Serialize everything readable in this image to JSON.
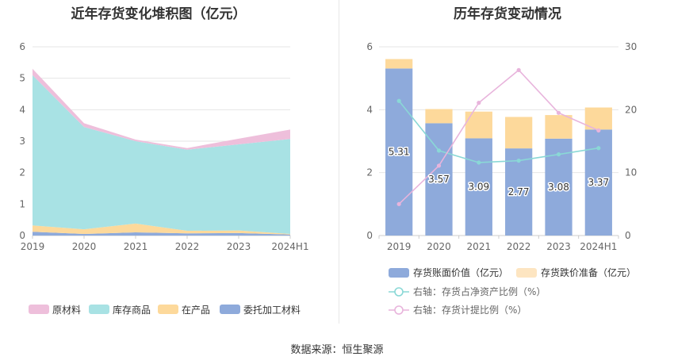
{
  "source_label": "数据来源：恒生聚源",
  "chart_data": [
    {
      "type": "area",
      "title": "近年存货变化堆积图（亿元）",
      "categories": [
        "2019",
        "2020",
        "2021",
        "2022",
        "2023",
        "2024H1"
      ],
      "ylim": [
        0,
        6
      ],
      "yticks": [
        "0",
        "1",
        "2",
        "3",
        "4",
        "5",
        "6"
      ],
      "grid": true,
      "legend_position": "bottom",
      "series": [
        {
          "name": "委托加工材料",
          "color": "#8eaadb",
          "values": [
            0.12,
            0.05,
            0.1,
            0.07,
            0.08,
            0.03
          ]
        },
        {
          "name": "在产品",
          "color": "#fdd99b",
          "values": [
            0.2,
            0.15,
            0.28,
            0.08,
            0.08,
            0.02
          ]
        },
        {
          "name": "库存商品",
          "color": "#a8e2e4",
          "values": [
            4.78,
            3.25,
            2.62,
            2.58,
            2.74,
            3.02
          ]
        },
        {
          "name": "原材料",
          "color": "#eebfdb",
          "values": [
            0.2,
            0.12,
            0.05,
            0.05,
            0.18,
            0.3
          ]
        }
      ],
      "legend_order": [
        "原材料",
        "库存商品",
        "在产品",
        "委托加工材料"
      ]
    },
    {
      "type": "bar",
      "title": "历年存货变动情况",
      "categories": [
        "2019",
        "2020",
        "2021",
        "2022",
        "2023",
        "2024H1"
      ],
      "ylim": [
        0,
        6
      ],
      "yticks": [
        "0",
        "2",
        "4",
        "6"
      ],
      "y2lim": [
        0,
        30
      ],
      "y2ticks": [
        "0",
        "10",
        "20",
        "30"
      ],
      "grid": true,
      "legend_position": "bottom",
      "bars": [
        {
          "name": "存货账面价值（亿元）",
          "color": "#8eaadb",
          "values": [
            5.31,
            3.57,
            3.09,
            2.77,
            3.08,
            3.37
          ],
          "labels": [
            "5.31",
            "3.57",
            "3.09",
            "2.77",
            "3.08",
            "3.37"
          ]
        },
        {
          "name": "存货跌价准备（亿元）",
          "color": "#fdd99b",
          "legend_color": "#fde5c1",
          "values": [
            0.3,
            0.45,
            0.85,
            1.0,
            0.75,
            0.7
          ]
        }
      ],
      "lines": [
        {
          "name": "右轴：存货占净资产比例（%）",
          "color": "#8ad8d6",
          "axis": "right",
          "values": [
            21.4,
            13.5,
            11.6,
            11.9,
            12.9,
            13.9
          ]
        },
        {
          "name": "右轴：存货计提比例（%）",
          "color": "#e8b4dc",
          "axis": "right",
          "values": [
            5.0,
            11.1,
            21.1,
            26.3,
            19.5,
            16.7
          ]
        }
      ]
    }
  ]
}
